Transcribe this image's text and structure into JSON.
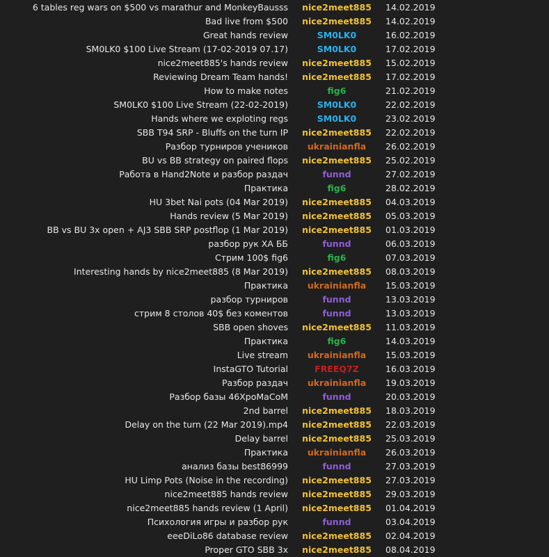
{
  "colors": {
    "background": "#1f1f1f",
    "text": "#e8e8e8",
    "nice2meet885": "#f2c233",
    "SM0LK0": "#2ab0ee",
    "fig6": "#27b24a",
    "ukrainianfla": "#d2691e",
    "funnd": "#8e5fd6",
    "FREEQ7Z": "#c81e1e"
  },
  "videos": [
    {
      "title": "6 tables reg wars on $500 vs marathur and MonkeyBausss",
      "author": "nice2meet885",
      "date": "14.02.2019"
    },
    {
      "title": "Bad live from $500",
      "author": "nice2meet885",
      "date": "14.02.2019"
    },
    {
      "title": "Great hands review",
      "author": "SM0LK0",
      "date": "16.02.2019"
    },
    {
      "title": "SM0LK0 $100 Live Stream (17-02-2019 07.17)",
      "author": "SM0LK0",
      "date": "17.02.2019"
    },
    {
      "title": "nice2meet885's hands review",
      "author": "nice2meet885",
      "date": "15.02.2019"
    },
    {
      "title": "Reviewing Dream Team hands!",
      "author": "nice2meet885",
      "date": "17.02.2019"
    },
    {
      "title": "How to make notes",
      "author": "fig6",
      "date": "21.02.2019"
    },
    {
      "title": "SM0LK0 $100 Live Stream (22-02-2019)",
      "author": "SM0LK0",
      "date": "22.02.2019"
    },
    {
      "title": "Hands where we exploting regs",
      "author": "SM0LK0",
      "date": "23.02.2019"
    },
    {
      "title": "SBB T94 SRP - Bluffs on the turn IP",
      "author": "nice2meet885",
      "date": "22.02.2019"
    },
    {
      "title": "Разбор турниров учеников",
      "author": "ukrainianfla",
      "date": "26.02.2019"
    },
    {
      "title": "BU vs BB strategy on paired flops",
      "author": "nice2meet885",
      "date": "25.02.2019"
    },
    {
      "title": "Работа в Hand2Note и разбор раздач",
      "author": "funnd",
      "date": "27.02.2019"
    },
    {
      "title": "Практика",
      "author": "fig6",
      "date": "28.02.2019"
    },
    {
      "title": "HU 3bet Nai pots (04 Mar 2019)",
      "author": "nice2meet885",
      "date": "04.03.2019"
    },
    {
      "title": "Hands review (5 Mar 2019)",
      "author": "nice2meet885",
      "date": "05.03.2019"
    },
    {
      "title": "BB vs BU 3x open + AJ3 SBB SRP postflop (1 Mar 2019)",
      "author": "nice2meet885",
      "date": "01.03.2019"
    },
    {
      "title": "разбор рук ХА ББ",
      "author": "funnd",
      "date": "06.03.2019"
    },
    {
      "title": "Стрим 100$ fig6",
      "author": "fig6",
      "date": "07.03.2019"
    },
    {
      "title": "Interesting hands by nice2meet885 (8 Mar 2019)",
      "author": "nice2meet885",
      "date": "08.03.2019"
    },
    {
      "title": "Практика",
      "author": "ukrainianfla",
      "date": "15.03.2019"
    },
    {
      "title": "разбор турниров",
      "author": "funnd",
      "date": "13.03.2019"
    },
    {
      "title": "стрим 8 столов 40$ без коментов",
      "author": "funnd",
      "date": "13.03.2019"
    },
    {
      "title": "SBB open shoves",
      "author": "nice2meet885",
      "date": "11.03.2019"
    },
    {
      "title": "Практика",
      "author": "fig6",
      "date": "14.03.2019"
    },
    {
      "title": "Live stream",
      "author": "ukrainianfla",
      "date": "15.03.2019"
    },
    {
      "title": "InstaGTO Tutorial",
      "author": "FREEQ7Z",
      "date": "16.03.2019"
    },
    {
      "title": "Разбор раздач",
      "author": "ukrainianfla",
      "date": "19.03.2019"
    },
    {
      "title": "Разбор базы 46ХроМаСоМ",
      "author": "funnd",
      "date": "20.03.2019"
    },
    {
      "title": "2nd barrel",
      "author": "nice2meet885",
      "date": "18.03.2019"
    },
    {
      "title": "Delay on the turn (22 Mar 2019).mp4",
      "author": "nice2meet885",
      "date": "22.03.2019"
    },
    {
      "title": "Delay barrel",
      "author": "nice2meet885",
      "date": "25.03.2019"
    },
    {
      "title": "Практика",
      "author": "ukrainianfla",
      "date": "26.03.2019"
    },
    {
      "title": "анализ базы best86999",
      "author": "funnd",
      "date": "27.03.2019"
    },
    {
      "title": "HU Limp Pots (Noise in the recording)",
      "author": "nice2meet885",
      "date": "27.03.2019"
    },
    {
      "title": "nice2meet885 hands review",
      "author": "nice2meet885",
      "date": "29.03.2019"
    },
    {
      "title": "nice2meet885 hands review (1 April)",
      "author": "nice2meet885",
      "date": "01.04.2019"
    },
    {
      "title": "Психология игры и разбор рук",
      "author": "funnd",
      "date": "03.04.2019"
    },
    {
      "title": "eeeDiLo86  database review",
      "author": "nice2meet885",
      "date": "02.04.2019"
    },
    {
      "title": "Proper GTO SBB 3x",
      "author": "nice2meet885",
      "date": "08.04.2019"
    }
  ]
}
